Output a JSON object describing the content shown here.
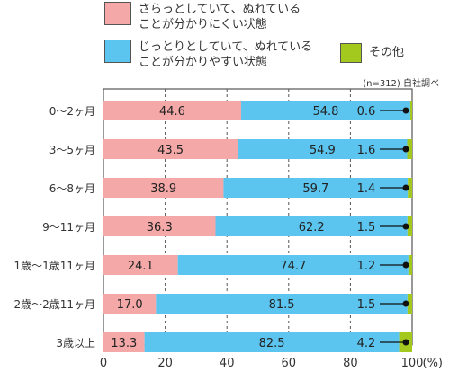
{
  "legend": [
    {
      "label": "さらっとしていて、ぬれている\nことが分かりにくい状態",
      "color": "#f4a9a8"
    },
    {
      "label": "じっとりとしていて、ぬれている\nことが分かりやすい状態",
      "color": "#5bc5f0"
    },
    {
      "label": "その他",
      "color": "#a3c81e"
    }
  ],
  "source_note": "(n=312) 自社調べ",
  "chart_data": {
    "type": "bar",
    "stacked": true,
    "orientation": "horizontal",
    "categories": [
      "0〜2ヶ月",
      "3〜5ヶ月",
      "6〜8ヶ月",
      "9〜11ヶ月",
      "1歳〜1歳11ヶ月",
      "2歳〜2歳11ヶ月",
      "3歳以上"
    ],
    "series": [
      {
        "name": "さらっとしていて、ぬれていることが分かりにくい状態",
        "color": "#f4a9a8",
        "values": [
          44.6,
          43.5,
          38.9,
          36.3,
          24.1,
          17.0,
          13.3
        ],
        "labels": [
          "44.6",
          "43.5",
          "38.9",
          "36.3",
          "24.1",
          "17.0",
          "13.3"
        ]
      },
      {
        "name": "じっとりとしていて、ぬれていることが分かりやすい状態",
        "color": "#5bc5f0",
        "values": [
          54.8,
          54.9,
          59.7,
          62.2,
          74.7,
          81.5,
          82.5
        ],
        "labels": [
          "54.8",
          "54.9",
          "59.7",
          "62.2",
          "74.7",
          "81.5",
          "82.5"
        ]
      },
      {
        "name": "その他",
        "color": "#a3c81e",
        "values": [
          0.6,
          1.6,
          1.4,
          1.5,
          1.2,
          1.5,
          4.2
        ],
        "labels": [
          "0.6",
          "1.6",
          "1.4",
          "1.5",
          "1.2",
          "1.5",
          "4.2"
        ]
      }
    ],
    "xlim": [
      0,
      100
    ],
    "xticks": [
      0,
      20,
      40,
      60,
      80,
      100
    ],
    "xtick_labels": [
      "0",
      "20",
      "40",
      "60",
      "80",
      "100"
    ],
    "unit_label": "(%)",
    "grid": "vertical dashed"
  }
}
